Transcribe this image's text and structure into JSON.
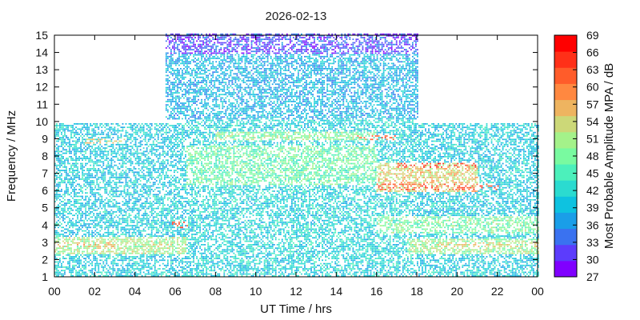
{
  "chart_data": {
    "type": "heatmap",
    "title": "2026-02-13",
    "xlabel": "UT Time / hrs",
    "ylabel": "Frequency / MHz",
    "colorbar_label": "Most Probable Amplitude MPA / dB",
    "xlim": [
      0,
      24
    ],
    "ylim": [
      1,
      15
    ],
    "x_ticks": [
      "00",
      "02",
      "04",
      "06",
      "08",
      "10",
      "12",
      "14",
      "16",
      "18",
      "20",
      "22",
      "00"
    ],
    "y_ticks": [
      "1",
      "2",
      "3",
      "4",
      "5",
      "6",
      "7",
      "8",
      "9",
      "10",
      "11",
      "12",
      "13",
      "14",
      "15"
    ],
    "colorbar": {
      "range": [
        27,
        69
      ],
      "ticks": [
        "27",
        "30",
        "33",
        "36",
        "39",
        "42",
        "45",
        "48",
        "51",
        "54",
        "57",
        "60",
        "63",
        "66",
        "69"
      ],
      "colors": [
        "#8000ff",
        "#5c3cfc",
        "#3a72f0",
        "#1a9ee8",
        "#0ec2e0",
        "#2bdbd0",
        "#4cf0bb",
        "#79faa0",
        "#a4f28a",
        "#ccd878",
        "#eeb460",
        "#ff8840",
        "#ff5c2a",
        "#ff3018",
        "#ff0000"
      ]
    },
    "regions": [
      {
        "x": [
          0,
          6.5
        ],
        "y": [
          1,
          9.8
        ],
        "level_db": 40
      },
      {
        "x": [
          6.5,
          17.8
        ],
        "y": [
          1,
          10
        ],
        "level_db": 41
      },
      {
        "x": [
          17.8,
          24
        ],
        "y": [
          1,
          9.8
        ],
        "level_db": 40
      },
      {
        "x": [
          5.5,
          18
        ],
        "y": [
          10,
          15
        ],
        "level_db": 38
      },
      {
        "x": [
          5.5,
          18
        ],
        "y": [
          13.8,
          15
        ],
        "level_db": 31
      },
      {
        "x": [
          0,
          6.5
        ],
        "y": [
          2.3,
          3.3
        ],
        "level_db": 51
      },
      {
        "x": [
          17.5,
          24
        ],
        "y": [
          2.3,
          3.2
        ],
        "level_db": 50
      },
      {
        "x": [
          16,
          24
        ],
        "y": [
          3.5,
          4.5
        ],
        "level_db": 48
      },
      {
        "x": [
          6.5,
          16
        ],
        "y": [
          6.2,
          8.5
        ],
        "level_db": 47
      },
      {
        "x": [
          16,
          21
        ],
        "y": [
          5.8,
          7.5
        ],
        "level_db": 55
      },
      {
        "x": [
          8,
          16
        ],
        "y": [
          8.8,
          9.3
        ],
        "level_db": 49
      }
    ],
    "hotspots": [
      {
        "x": [
          17,
          21
        ],
        "y": [
          7.2,
          7.5
        ],
        "level_db": 66
      },
      {
        "x": [
          16,
          22
        ],
        "y": [
          5.9,
          6.3
        ],
        "level_db": 64
      },
      {
        "x": [
          0,
          3
        ],
        "y": [
          2.7,
          3.0
        ],
        "level_db": 57
      },
      {
        "x": [
          19,
          24
        ],
        "y": [
          2.7,
          3.0
        ],
        "level_db": 56
      },
      {
        "x": [
          15,
          17
        ],
        "y": [
          8.8,
          9.1
        ],
        "level_db": 63
      },
      {
        "x": [
          5.8,
          6.6
        ],
        "y": [
          3.8,
          4.2
        ],
        "level_db": 65
      },
      {
        "x": [
          1.5,
          3.5
        ],
        "y": [
          8.6,
          8.9
        ],
        "level_db": 56
      }
    ]
  }
}
